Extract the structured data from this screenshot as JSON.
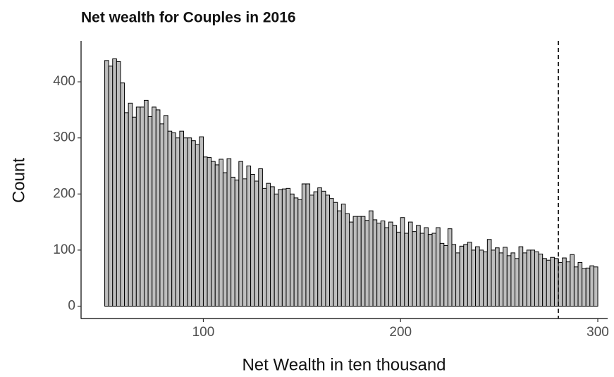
{
  "chart_data": {
    "type": "histogram",
    "title": "Net wealth for Couples in 2016",
    "xlabel": "Net Wealth in ten thousand",
    "ylabel": "Count",
    "bins": [
      50,
      52,
      54,
      56,
      58,
      60,
      62,
      64,
      66,
      68,
      70,
      72,
      74,
      76,
      78,
      80,
      82,
      84,
      86,
      88,
      90,
      92,
      94,
      96,
      98,
      100,
      102,
      104,
      106,
      108,
      110,
      112,
      114,
      116,
      118,
      120,
      122,
      124,
      126,
      128,
      130,
      132,
      134,
      136,
      138,
      140,
      142,
      144,
      146,
      148,
      150,
      152,
      154,
      156,
      158,
      160,
      162,
      164,
      166,
      168,
      170,
      172,
      174,
      176,
      178,
      180,
      182,
      184,
      186,
      188,
      190,
      192,
      194,
      196,
      198,
      200,
      202,
      204,
      206,
      208,
      210,
      212,
      214,
      216,
      218,
      220,
      222,
      224,
      226,
      228,
      230,
      232,
      234,
      236,
      238,
      240,
      242,
      244,
      246,
      248,
      250,
      252,
      254,
      256,
      258,
      260,
      262,
      264,
      266,
      268,
      270,
      272,
      274,
      276,
      278,
      280,
      282,
      284,
      286,
      288,
      290,
      292,
      294,
      296,
      298,
      300
    ],
    "values": [
      438,
      428,
      441,
      436,
      398,
      345,
      362,
      337,
      355,
      355,
      367,
      338,
      355,
      350,
      325,
      340,
      312,
      309,
      300,
      312,
      300,
      300,
      295,
      288,
      302,
      266,
      265,
      258,
      252,
      262,
      238,
      263,
      230,
      225,
      258,
      227,
      250,
      235,
      223,
      245,
      210,
      219,
      213,
      200,
      208,
      209,
      210,
      200,
      193,
      190,
      218,
      218,
      198,
      204,
      211,
      205,
      198,
      192,
      185,
      170,
      182,
      165,
      150,
      160,
      160,
      160,
      153,
      170,
      154,
      148,
      152,
      140,
      150,
      144,
      132,
      158,
      130,
      150,
      133,
      144,
      130,
      140,
      128,
      130,
      140,
      112,
      108,
      138,
      110,
      95,
      107,
      110,
      114,
      100,
      106,
      100,
      97,
      119,
      100,
      104,
      95,
      105,
      90,
      95,
      85,
      106,
      95,
      100,
      100,
      97,
      93,
      85,
      82,
      87,
      85,
      78,
      86,
      79,
      92,
      70,
      78,
      67,
      68,
      72,
      70
    ],
    "color": "#bebebe",
    "edgecolor": "#000000",
    "vline": 280,
    "xlim": [
      38,
      305
    ],
    "xticks": [
      100,
      200,
      300
    ],
    "ylim": [
      -22,
      473
    ],
    "yticks": [
      0,
      100,
      200,
      300,
      400
    ],
    "grid": false
  }
}
